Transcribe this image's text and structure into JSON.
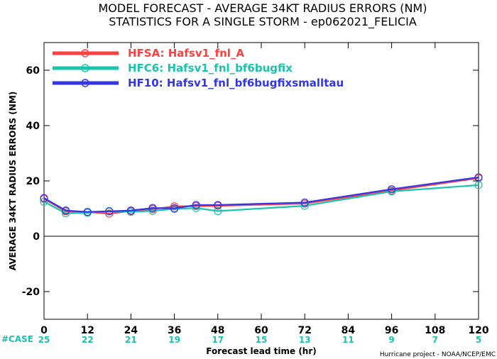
{
  "chart_data": {
    "type": "line",
    "title": "MODEL FORECAST - AVERAGE 34KT RADIUS ERRORS (NM)",
    "subtitle": "STATISTICS FOR A SINGLE STORM - ep062021_FELICIA",
    "xlabel": "Forecast lead time (hr)",
    "ylabel": "AVERAGE 34KT RADIUS ERRORS (NM)",
    "xlim": [
      0,
      120
    ],
    "ylim": [
      -30,
      70
    ],
    "x_ticks": [
      0,
      12,
      24,
      36,
      48,
      60,
      72,
      84,
      96,
      108,
      120
    ],
    "y_ticks": [
      -20,
      0,
      20,
      40,
      60
    ],
    "grid": false,
    "legend_position": "top-left",
    "case_label": "#CASE",
    "case_counts": [
      25,
      22,
      21,
      19,
      17,
      15,
      13,
      11,
      9,
      7,
      5
    ],
    "series": [
      {
        "name": "HFSA: Hafsv1_fnl_A",
        "color": "#ff4040",
        "x": [
          0,
          6,
          12,
          18,
          24,
          30,
          36,
          42,
          48,
          72,
          96,
          120
        ],
        "y": [
          13.5,
          9.0,
          8.7,
          8.2,
          9.1,
          9.8,
          10.8,
          10.9,
          11.0,
          11.8,
          16.5,
          21.0
        ]
      },
      {
        "name": "HFC6: Hafsv1_fnl_bf6bugfix",
        "color": "#19c3ad",
        "x": [
          0,
          6,
          12,
          18,
          24,
          30,
          36,
          42,
          48,
          72,
          96,
          120
        ],
        "y": [
          12.5,
          8.3,
          8.5,
          9.1,
          8.8,
          9.2,
          9.9,
          10.2,
          9.1,
          11.0,
          16.2,
          18.5
        ]
      },
      {
        "name": "HF10: Hafsv1_fnl_bf6bugfixsmalltau",
        "color": "#3236e6",
        "x": [
          0,
          6,
          12,
          18,
          24,
          30,
          36,
          42,
          48,
          72,
          96,
          120
        ],
        "y": [
          13.8,
          9.3,
          8.8,
          9.0,
          9.3,
          10.2,
          10.1,
          11.3,
          11.3,
          12.2,
          17.0,
          21.3
        ]
      }
    ],
    "credit": "Hurricane project - NOAA/NCEP/EMC"
  }
}
